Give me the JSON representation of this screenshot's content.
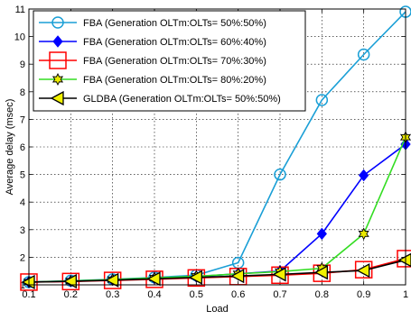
{
  "chart_data": {
    "type": "line",
    "xlabel": "Load",
    "ylabel": "Average delay (msec)",
    "xlim": [
      0.1,
      1.0
    ],
    "ylim": [
      1,
      11
    ],
    "x_ticks": [
      "0.1",
      "0.2",
      "0.3",
      "0.4",
      "0.5",
      "0.6",
      "0.7",
      "0.8",
      "0.9",
      "1"
    ],
    "y_ticks": [
      "1",
      "2",
      "3",
      "4",
      "5",
      "6",
      "7",
      "8",
      "9",
      "10",
      "11"
    ],
    "grid": true,
    "legend_position": "top-left",
    "x": [
      0.1,
      0.2,
      0.3,
      0.4,
      0.5,
      0.6,
      0.7,
      0.8,
      0.9,
      1.0
    ],
    "series": [
      {
        "name": "FBA (Generation OLTm:OLTs= 50%:50%)",
        "color": "#1a9fd6",
        "marker": "circle",
        "values": [
          1.1,
          1.15,
          1.2,
          1.27,
          1.35,
          1.8,
          5.0,
          7.7,
          9.35,
          10.9
        ]
      },
      {
        "name": "FBA (Generation OLTm:OLTs= 60%:40%)",
        "color": "#0000ff",
        "marker": "diamond",
        "values": [
          1.1,
          1.13,
          1.18,
          1.24,
          1.3,
          1.4,
          1.5,
          2.85,
          4.97,
          6.1
        ]
      },
      {
        "name": "FBA (Generation OLTm:OLTs= 70%:30%)",
        "color": "#ff0000",
        "marker": "square",
        "values": [
          1.1,
          1.12,
          1.16,
          1.2,
          1.25,
          1.3,
          1.35,
          1.42,
          1.55,
          1.95
        ]
      },
      {
        "name": "FBA (Generation OLTm:OLTs= 80%:20%)",
        "color": "#33dd22",
        "marker": "star",
        "values": [
          1.1,
          1.14,
          1.19,
          1.25,
          1.31,
          1.4,
          1.48,
          1.6,
          2.85,
          6.35
        ]
      },
      {
        "name": "GLDBA (Generation OLTm:OLTs= 50%:50%)",
        "color": "#000000",
        "marker": "triangle-left",
        "values": [
          1.1,
          1.13,
          1.17,
          1.22,
          1.27,
          1.32,
          1.38,
          1.45,
          1.52,
          1.9
        ]
      }
    ]
  }
}
